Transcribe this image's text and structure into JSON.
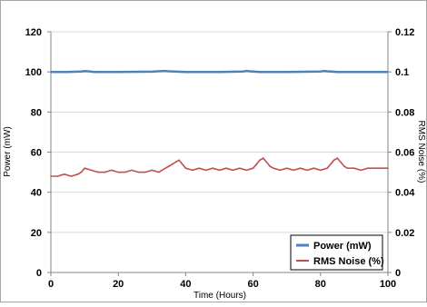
{
  "chart_data": {
    "type": "line",
    "x_axis": {
      "label": "Time (Hours)",
      "range": [
        0,
        100
      ],
      "ticks": [
        0,
        20,
        40,
        60,
        80,
        100
      ],
      "tick_labels": [
        "0",
        "20",
        "40",
        "60",
        "80",
        "100"
      ]
    },
    "y_left": {
      "label": "Power (mW)",
      "range": [
        0,
        120
      ],
      "ticks": [
        0,
        20,
        40,
        60,
        80,
        100,
        120
      ],
      "tick_labels": [
        "0",
        "20",
        "40",
        "60",
        "80",
        "100",
        "120"
      ]
    },
    "y_right": {
      "label": "RMS Noise (%)",
      "range": [
        0,
        0.12
      ],
      "ticks": [
        0,
        0.02,
        0.04,
        0.06,
        0.08,
        0.1,
        0.12
      ],
      "tick_labels": [
        "0",
        "0.02",
        "0.04",
        "0.06",
        "0.08",
        "0.1",
        "0.12"
      ]
    },
    "grid": "horizontal",
    "legend_position": "bottom-right",
    "series": [
      {
        "name": "Power (mW)",
        "axis": "left",
        "color": "#4f81bd",
        "x": [
          0,
          5,
          9,
          10,
          11,
          13,
          20,
          30,
          33,
          34,
          35,
          40,
          50,
          57,
          58,
          59,
          62,
          70,
          80,
          81,
          82,
          85,
          90,
          100
        ],
        "values": [
          100,
          100,
          100.2,
          100.4,
          100.3,
          100,
          100,
          100.1,
          100.4,
          100.5,
          100.3,
          100,
          100,
          100.2,
          100.5,
          100.3,
          100,
          100,
          100.2,
          100.5,
          100.3,
          100,
          100,
          100
        ]
      },
      {
        "name": "RMS Noise (%)",
        "axis": "right",
        "color": "#c0504d",
        "x": [
          0,
          2,
          4,
          6,
          8,
          9,
          10,
          12,
          14,
          16,
          18,
          20,
          22,
          24,
          26,
          28,
          30,
          32,
          34,
          35,
          36,
          37,
          38,
          39,
          40,
          42,
          44,
          46,
          48,
          50,
          52,
          54,
          56,
          58,
          60,
          61,
          62,
          63,
          64,
          65,
          66,
          68,
          70,
          72,
          74,
          76,
          78,
          80,
          82,
          83,
          84,
          85,
          86,
          87,
          88,
          90,
          92,
          94,
          96,
          98,
          100
        ],
        "values": [
          0.048,
          0.048,
          0.049,
          0.048,
          0.049,
          0.05,
          0.052,
          0.051,
          0.05,
          0.05,
          0.051,
          0.05,
          0.05,
          0.051,
          0.05,
          0.05,
          0.051,
          0.05,
          0.052,
          0.053,
          0.054,
          0.055,
          0.056,
          0.054,
          0.052,
          0.051,
          0.052,
          0.051,
          0.052,
          0.051,
          0.052,
          0.051,
          0.052,
          0.051,
          0.052,
          0.054,
          0.056,
          0.057,
          0.055,
          0.053,
          0.052,
          0.051,
          0.052,
          0.051,
          0.052,
          0.051,
          0.052,
          0.051,
          0.052,
          0.054,
          0.056,
          0.057,
          0.055,
          0.053,
          0.052,
          0.052,
          0.051,
          0.052,
          0.052,
          0.052,
          0.052
        ]
      }
    ]
  }
}
